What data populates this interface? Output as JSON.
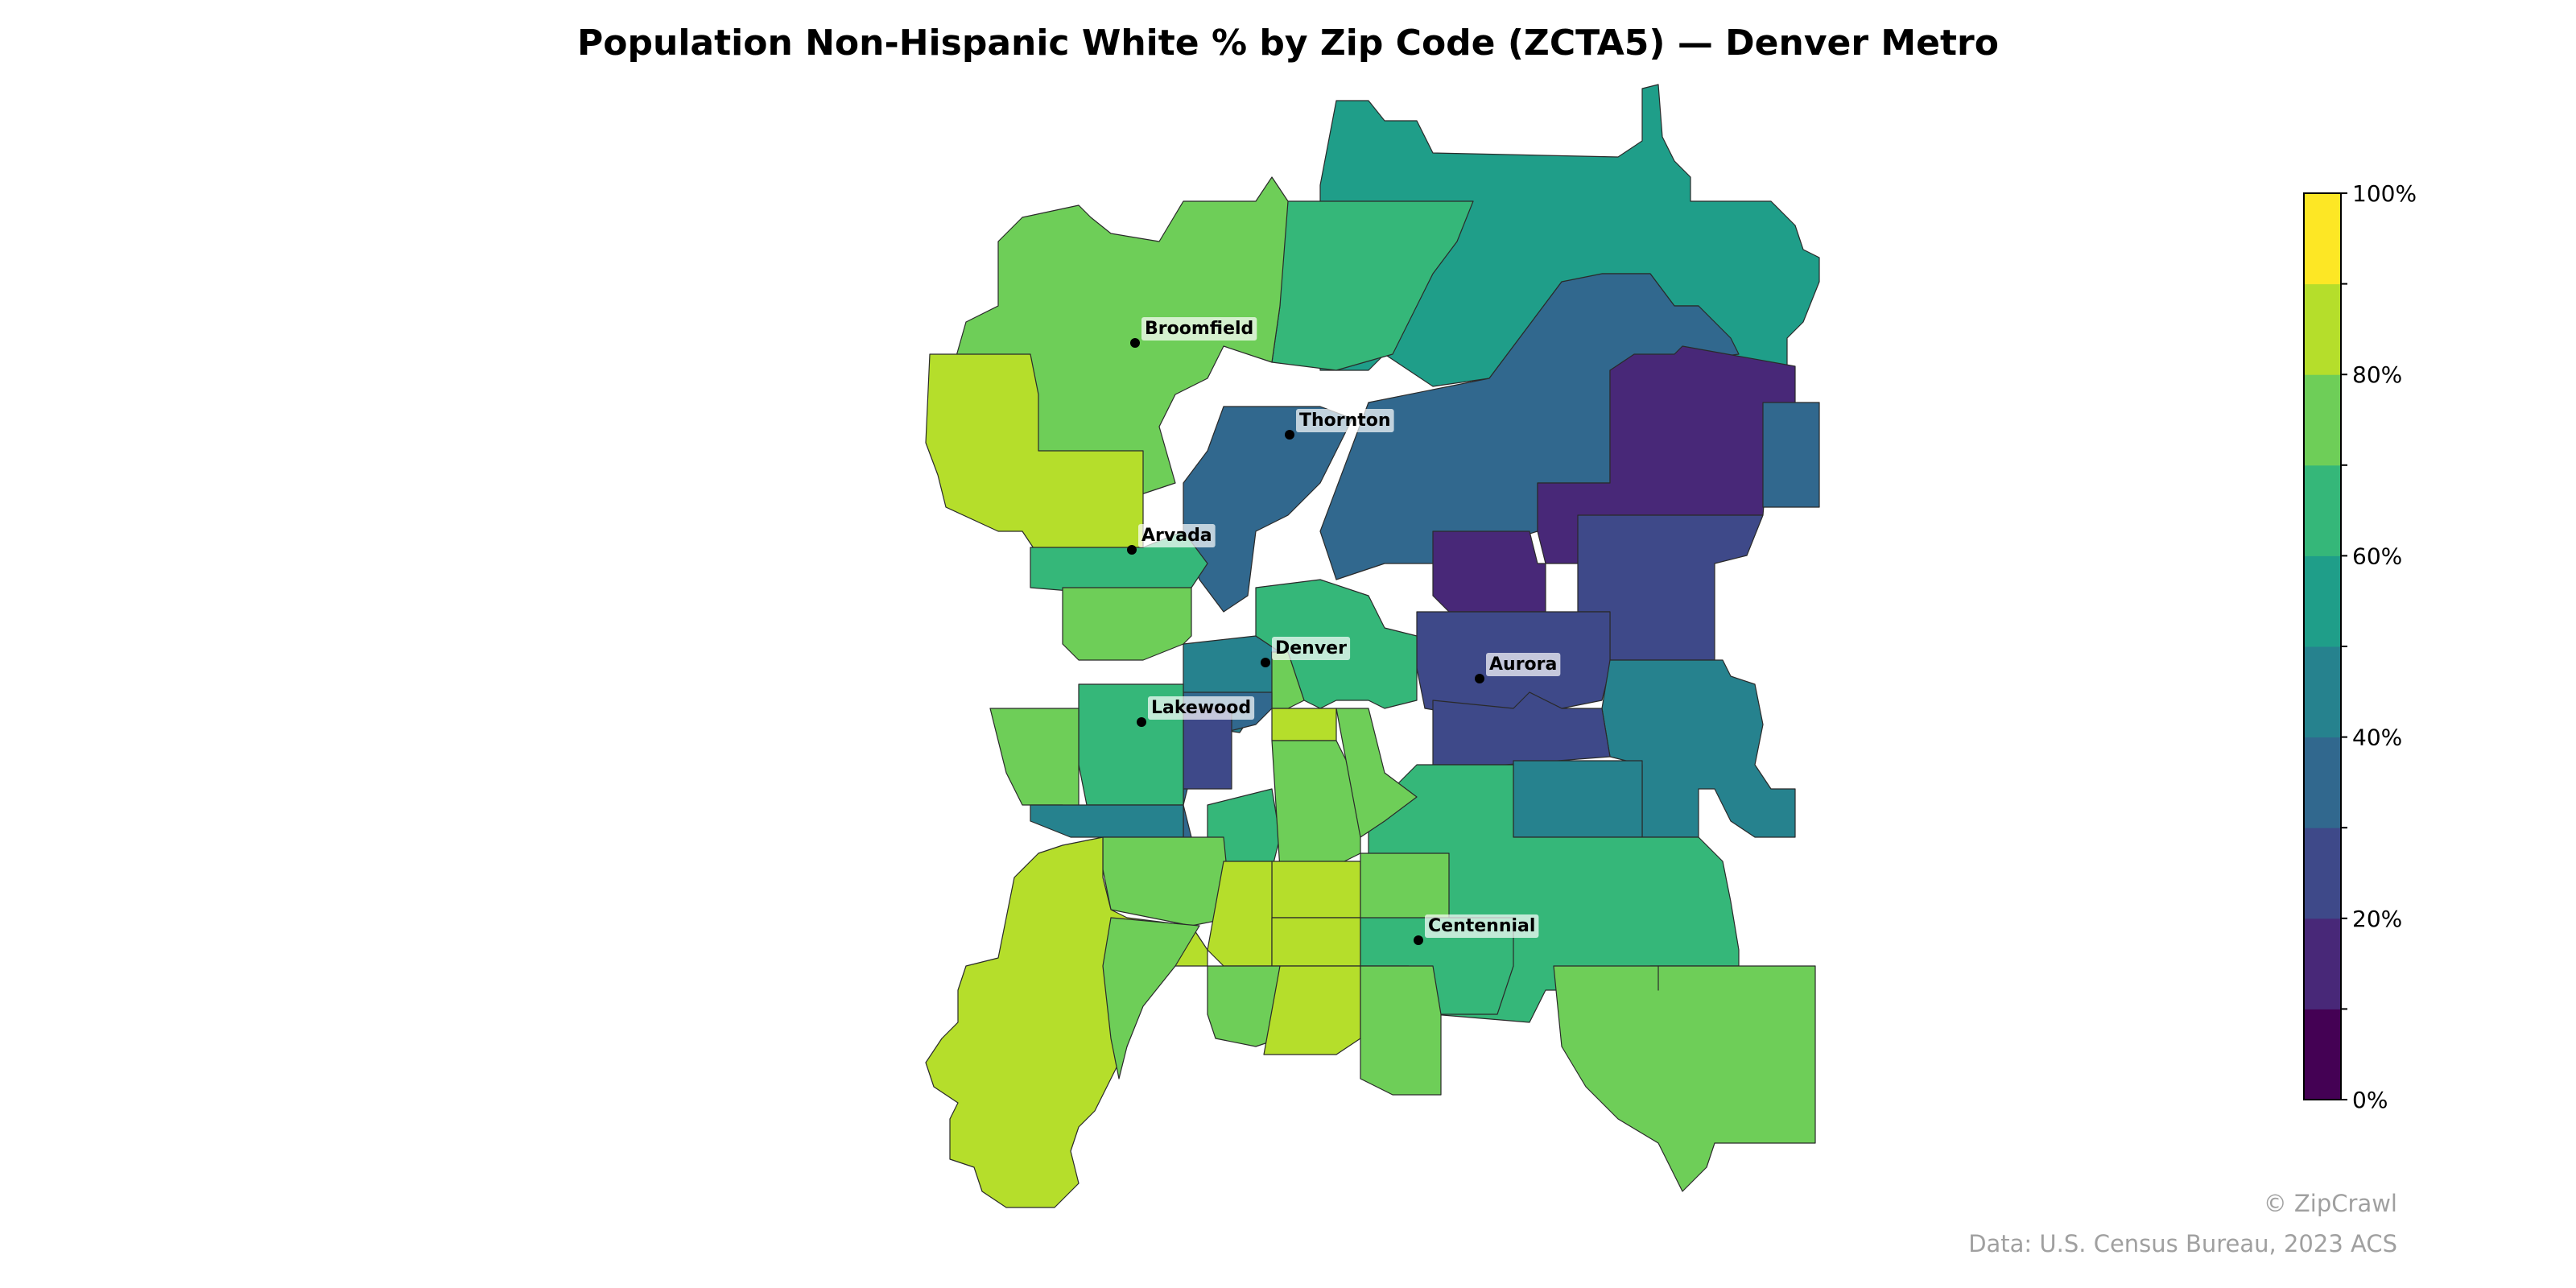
{
  "title": "Population Non-Hispanic White % by Zip Code (ZCTA5) — Denver Metro",
  "colorbar": {
    "min": 0,
    "max": 100,
    "step": 10,
    "colors": [
      "#440154",
      "#482878",
      "#3e4989",
      "#31688e",
      "#26828e",
      "#1f9e89",
      "#35b779",
      "#6ece58",
      "#b5de2b",
      "#fde725"
    ],
    "tick_labels": [
      "0%",
      "20%",
      "40%",
      "60%",
      "80%",
      "100%"
    ]
  },
  "cities": [
    {
      "name": "Broomfield",
      "icon": "city-dot-icon"
    },
    {
      "name": "Thornton",
      "icon": "city-dot-icon"
    },
    {
      "name": "Arvada",
      "icon": "city-dot-icon"
    },
    {
      "name": "Denver",
      "icon": "city-dot-icon"
    },
    {
      "name": "Aurora",
      "icon": "city-dot-icon"
    },
    {
      "name": "Lakewood",
      "icon": "city-dot-icon"
    },
    {
      "name": "Centennial",
      "icon": "city-dot-icon"
    }
  ],
  "credit": "© ZipCrawl",
  "source": "Data: U.S. Census Bureau, 2023 ACS"
}
